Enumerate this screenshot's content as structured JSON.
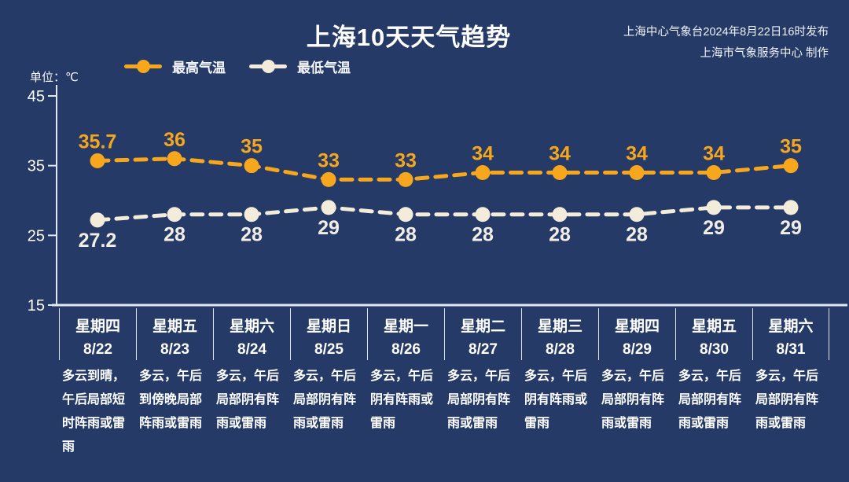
{
  "page": {
    "background_color": "#253a66"
  },
  "header": {
    "title": "上海10天天气趋势",
    "source_line1": "上海中心气象台2024年8月22日16时发布",
    "source_line2": "上海市气象服务中心 制作"
  },
  "legend": {
    "high_label": "最高气温",
    "low_label": "最低气温"
  },
  "unit_label": "单位：℃",
  "chart_data": {
    "type": "line",
    "title": "上海10天天气趋势",
    "unit": "℃",
    "ylim": [
      15,
      45
    ],
    "y_ticks": [
      45,
      35,
      25,
      15
    ],
    "grid": false,
    "legend_position": "top",
    "line_style": "dashed",
    "axis_color": "#e2e8f3",
    "categories_weekday": [
      "星期四",
      "星期五",
      "星期六",
      "星期日",
      "星期一",
      "星期二",
      "星期三",
      "星期四",
      "星期五",
      "星期六"
    ],
    "categories_date": [
      "8/22",
      "8/23",
      "8/24",
      "8/25",
      "8/26",
      "8/27",
      "8/28",
      "8/29",
      "8/30",
      "8/31"
    ],
    "series": [
      {
        "name": "最高气温",
        "color": "#f6a71d",
        "label_color": "#f6a71d",
        "values": [
          35.7,
          36,
          35,
          33,
          33,
          34,
          34,
          34,
          34,
          35
        ]
      },
      {
        "name": "最低气温",
        "color": "#f4ecda",
        "label_color": "#f2eee6",
        "values": [
          27.2,
          28,
          28,
          29,
          28,
          28,
          28,
          28,
          29,
          29
        ]
      }
    ],
    "weather": [
      "多云到晴，午后局部短时阵雨或雷雨",
      "多云，午后到傍晚局部阵雨或雷雨",
      "多云，午后局部阴有阵雨或雷雨",
      "多云，午后局部阴有阵雨或雷雨",
      "多云，午后阴有阵雨或雷雨",
      "多云，午后局部阴有阵雨或雷雨",
      "多云，午后阴有阵雨或雷雨",
      "多云，午后局部阴有阵雨或雷雨",
      "多云，午后局部阴有阵雨或雷雨",
      "多云，午后局部阴有阵雨或雷雨"
    ]
  }
}
